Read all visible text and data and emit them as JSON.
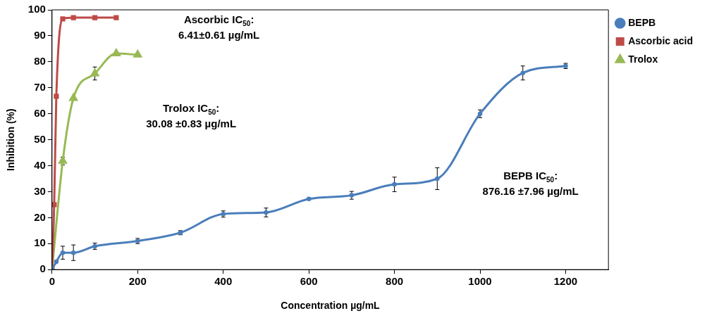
{
  "chart_data": {
    "type": "line",
    "xlabel": "Concentration µg/mL",
    "ylabel": "Inhibition (%)",
    "xlim": [
      0,
      1300
    ],
    "xticks": [
      0,
      200,
      400,
      600,
      800,
      1000,
      1200
    ],
    "ylim": [
      0,
      100
    ],
    "yticks": [
      0,
      10,
      20,
      30,
      40,
      50,
      60,
      70,
      80,
      90,
      100
    ],
    "grid": false,
    "legend": "top right",
    "series": [
      {
        "name": "BEPB",
        "color": "#4a7ebb",
        "marker": "circle",
        "x": [
          0,
          10,
          25,
          50,
          100,
          200,
          300,
          400,
          500,
          600,
          700,
          800,
          900,
          1000,
          1100,
          1200
        ],
        "values": [
          0,
          3,
          6.5,
          6.5,
          9,
          11,
          14.2,
          21.4,
          22,
          27.2,
          28.6,
          32.8,
          35,
          60,
          75.7,
          78.4
        ],
        "errors": [
          null,
          null,
          2.5,
          3,
          1.2,
          1,
          0.8,
          1.2,
          1.7,
          0.4,
          1.5,
          2.8,
          4.2,
          1.5,
          2.7,
          1
        ]
      },
      {
        "name": "Ascorbic acid",
        "color": "#be4b48",
        "marker": "square",
        "x": [
          0,
          5,
          10,
          25,
          50,
          100,
          150
        ],
        "values": [
          0,
          25,
          66.7,
          96.5,
          97,
          97,
          97
        ]
      },
      {
        "name": "Trolox",
        "color": "#98b954",
        "marker": "triangle",
        "x": [
          0,
          25,
          50,
          100,
          150,
          200
        ],
        "values": [
          0,
          41.8,
          66,
          75.5,
          83.2,
          82.7
        ],
        "errors": [
          null,
          1.5,
          null,
          2.5,
          null,
          null
        ]
      }
    ],
    "annotations": [
      "Ascorbic IC$_{50}$:\n6.41±0.61 µg/mL",
      "Trolox IC$_{50}$:\n30.08 ±0.83 µg/mL",
      "BEPB IC$_{50}$:\n876.16 ±7.96 µg/mL"
    ]
  }
}
